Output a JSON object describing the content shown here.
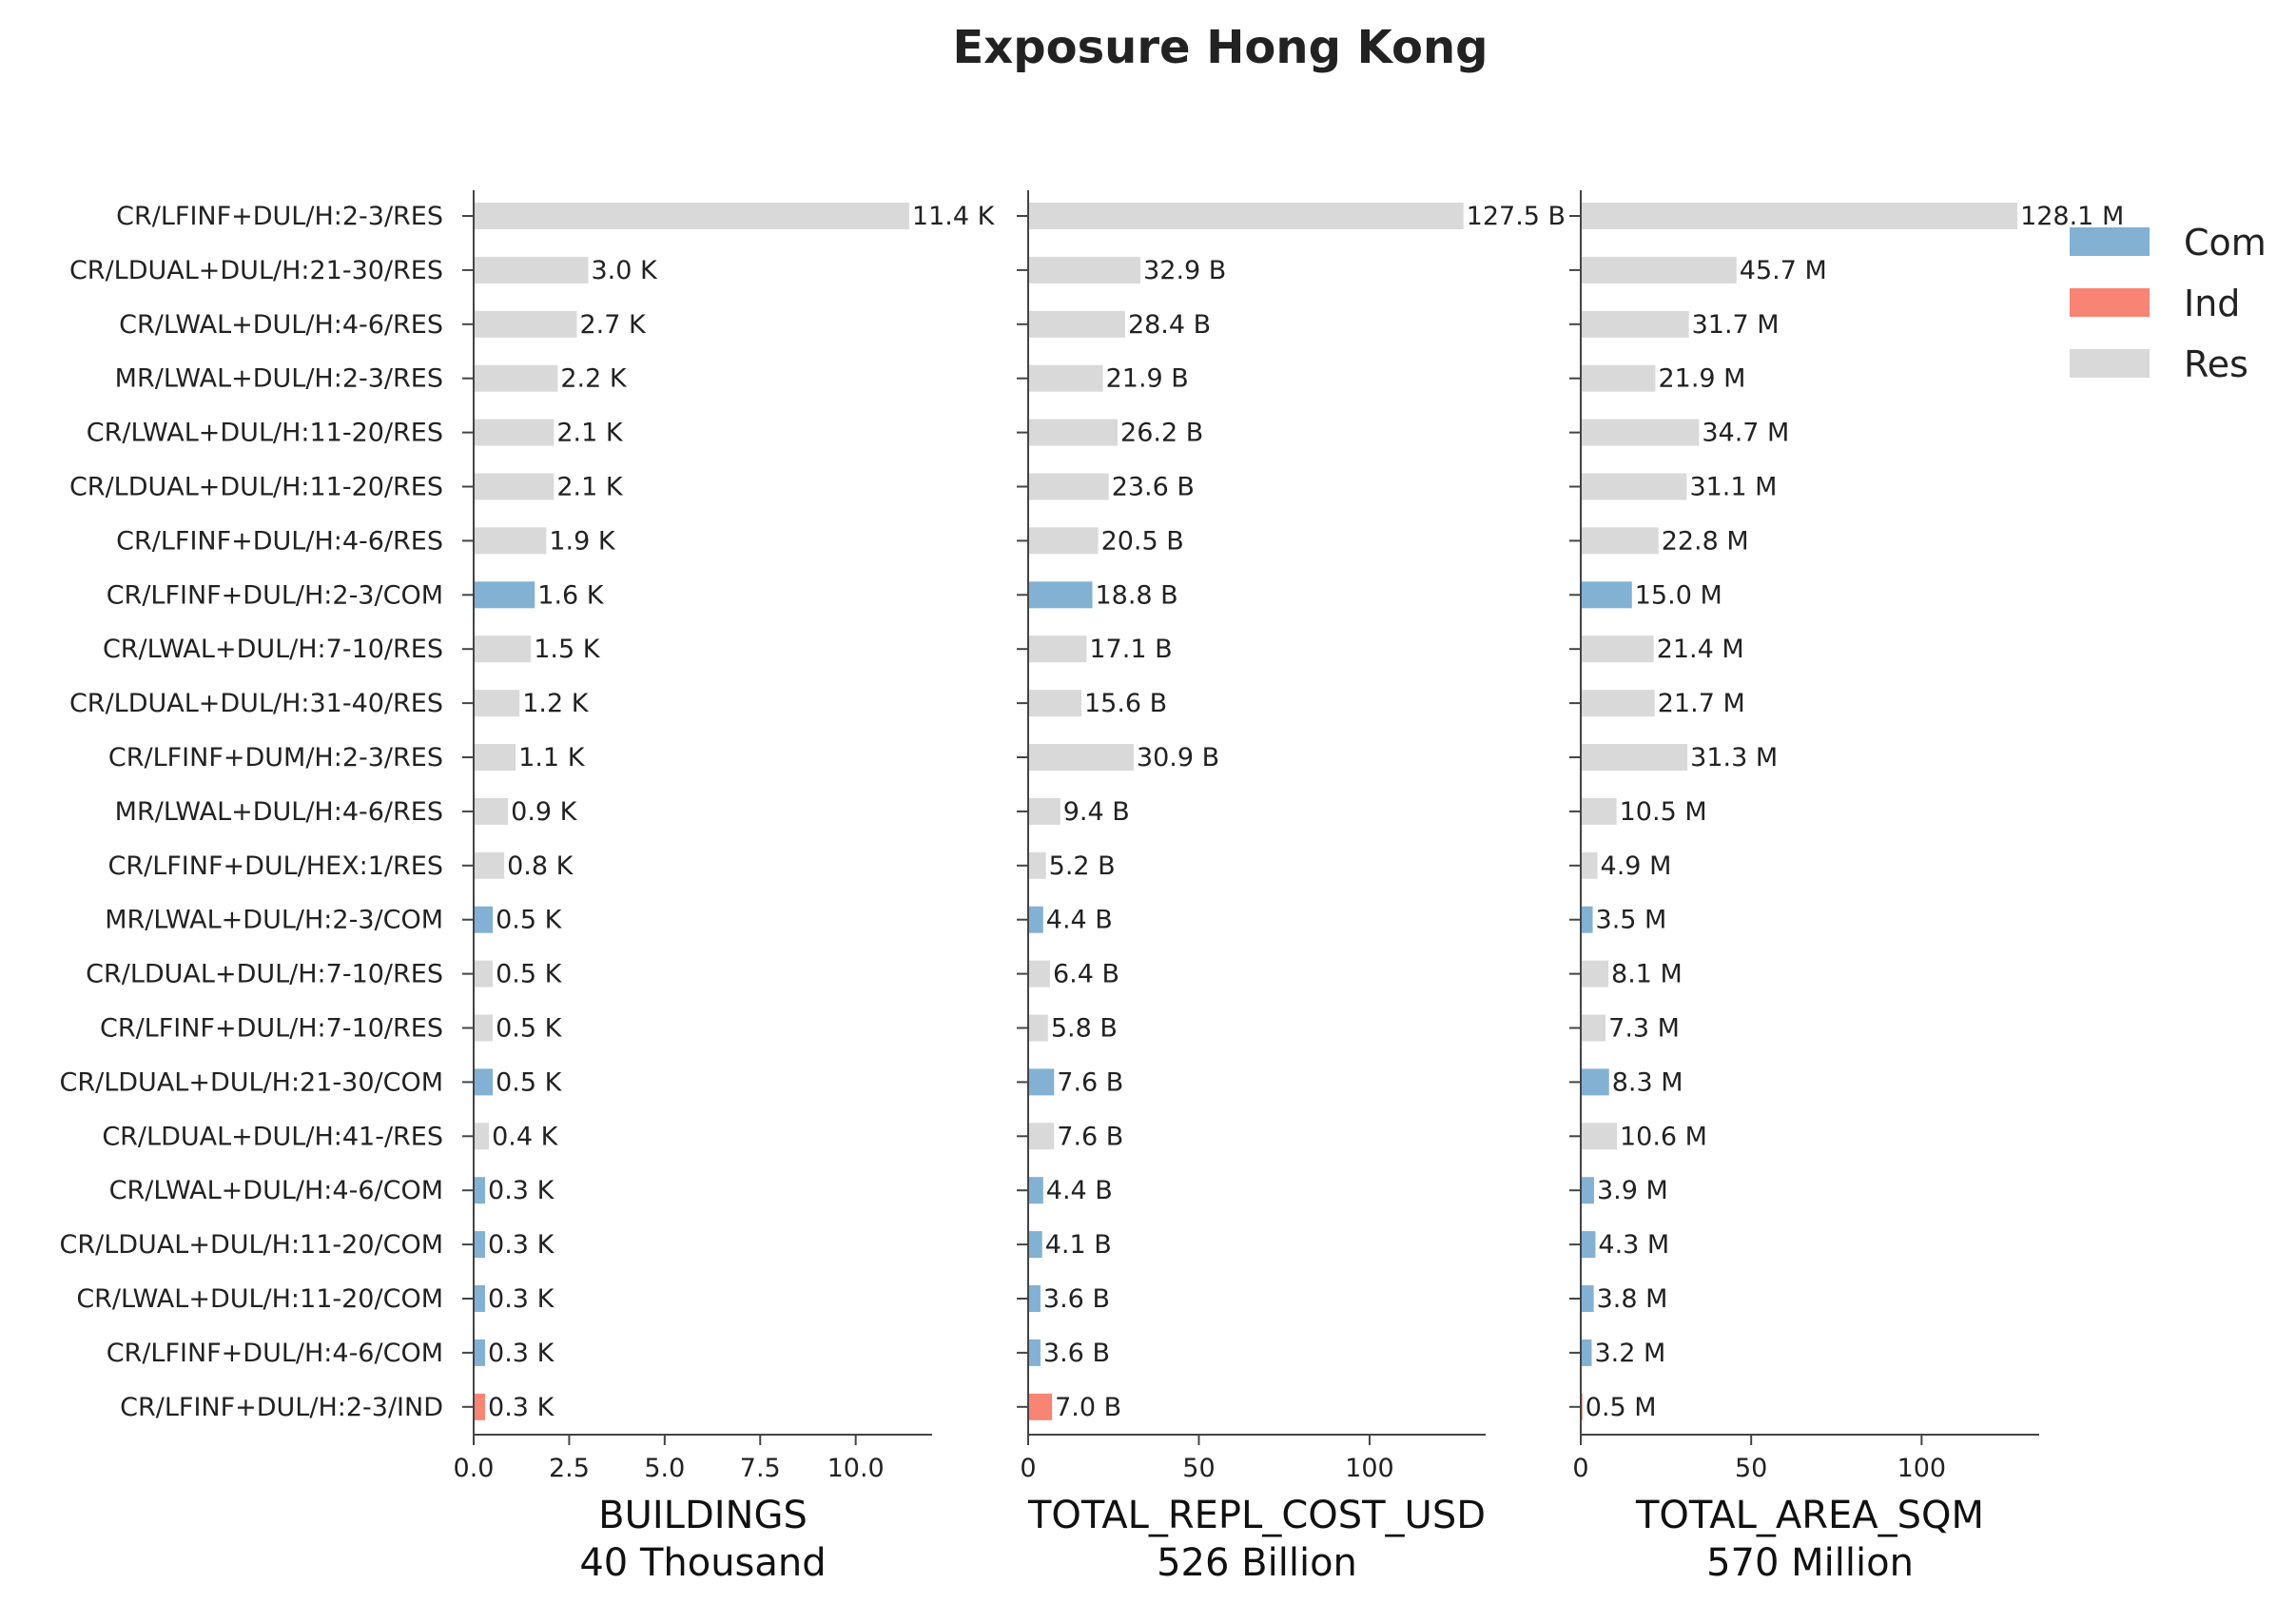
{
  "chart_data": {
    "type": "bar",
    "orientation": "horizontal",
    "title": "Exposure Hong Kong",
    "categories": [
      "CR/LFINF+DUL/H:2-3/RES",
      "CR/LDUAL+DUL/H:21-30/RES",
      "CR/LWAL+DUL/H:4-6/RES",
      "MR/LWAL+DUL/H:2-3/RES",
      "CR/LWAL+DUL/H:11-20/RES",
      "CR/LDUAL+DUL/H:11-20/RES",
      "CR/LFINF+DUL/H:4-6/RES",
      "CR/LFINF+DUL/H:2-3/COM",
      "CR/LWAL+DUL/H:7-10/RES",
      "CR/LDUAL+DUL/H:31-40/RES",
      "CR/LFINF+DUM/H:2-3/RES",
      "MR/LWAL+DUL/H:4-6/RES",
      "CR/LFINF+DUL/HEX:1/RES",
      "MR/LWAL+DUL/H:2-3/COM",
      "CR/LDUAL+DUL/H:7-10/RES",
      "CR/LFINF+DUL/H:7-10/RES",
      "CR/LDUAL+DUL/H:21-30/COM",
      "CR/LDUAL+DUL/H:41-/RES",
      "CR/LWAL+DUL/H:4-6/COM",
      "CR/LDUAL+DUL/H:11-20/COM",
      "CR/LWAL+DUL/H:11-20/COM",
      "CR/LFINF+DUL/H:4-6/COM",
      "CR/LFINF+DUL/H:2-3/IND"
    ],
    "occupancy": [
      "Res",
      "Res",
      "Res",
      "Res",
      "Res",
      "Res",
      "Res",
      "Com",
      "Res",
      "Res",
      "Res",
      "Res",
      "Res",
      "Com",
      "Res",
      "Res",
      "Com",
      "Res",
      "Com",
      "Com",
      "Com",
      "Com",
      "Ind"
    ],
    "legend": {
      "placement": "top-right",
      "entries": [
        {
          "name": "Com",
          "color": "#82b1d3"
        },
        {
          "name": "Ind",
          "color": "#f88474"
        },
        {
          "name": "Res",
          "color": "#d9d9d9"
        }
      ]
    },
    "panels": [
      {
        "xlabel": "BUILDINGS",
        "total": "40 Thousand",
        "xlim": [
          0,
          12
        ],
        "xticks": [
          0,
          2.5,
          5,
          7.5,
          10
        ],
        "xtick_labels": [
          "0.0",
          "2.5",
          "5.0",
          "7.5",
          "10.0"
        ],
        "values": [
          11.4,
          3.0,
          2.7,
          2.2,
          2.1,
          2.1,
          1.9,
          1.6,
          1.5,
          1.2,
          1.1,
          0.9,
          0.8,
          0.5,
          0.5,
          0.5,
          0.5,
          0.4,
          0.3,
          0.3,
          0.3,
          0.3,
          0.3
        ],
        "value_labels": [
          "11.4 K",
          "3.0 K",
          "2.7 K",
          "2.2 K",
          "2.1 K",
          "2.1 K",
          "1.9 K",
          "1.6 K",
          "1.5 K",
          "1.2 K",
          "1.1 K",
          "0.9 K",
          "0.8 K",
          "0.5 K",
          "0.5 K",
          "0.5 K",
          "0.5 K",
          "0.4 K",
          "0.3 K",
          "0.3 K",
          "0.3 K",
          "0.3 K",
          "0.3 K"
        ]
      },
      {
        "xlabel": "TOTAL_REPL_COST_USD",
        "total": "526 Billion",
        "xlim": [
          0,
          134
        ],
        "xticks": [
          0,
          50,
          100
        ],
        "xtick_labels": [
          "0",
          "50",
          "100"
        ],
        "values": [
          127.5,
          32.9,
          28.4,
          21.9,
          26.2,
          23.6,
          20.5,
          18.8,
          17.1,
          15.6,
          30.9,
          9.4,
          5.2,
          4.4,
          6.4,
          5.8,
          7.6,
          7.6,
          4.4,
          4.1,
          3.6,
          3.6,
          7.0
        ],
        "value_labels": [
          "127.5 B",
          "32.9 B",
          "28.4 B",
          "21.9 B",
          "26.2 B",
          "23.6 B",
          "20.5 B",
          "18.8 B",
          "17.1 B",
          "15.6 B",
          "30.9 B",
          "9.4 B",
          "5.2 B",
          "4.4 B",
          "6.4 B",
          "5.8 B",
          "7.6 B",
          "7.6 B",
          "4.4 B",
          "4.1 B",
          "3.6 B",
          "3.6 B",
          "7.0 B"
        ]
      },
      {
        "xlabel": "TOTAL_AREA_SQM",
        "total": "570 Million",
        "xlim": [
          0,
          134.5
        ],
        "xticks": [
          0,
          50,
          100
        ],
        "xtick_labels": [
          "0",
          "50",
          "100"
        ],
        "values": [
          128.1,
          45.7,
          31.7,
          21.9,
          34.7,
          31.1,
          22.8,
          15.0,
          21.4,
          21.7,
          31.3,
          10.5,
          4.9,
          3.5,
          8.1,
          7.3,
          8.3,
          10.6,
          3.9,
          4.3,
          3.8,
          3.2,
          0.5
        ],
        "value_labels": [
          "128.1 M",
          "45.7 M",
          "31.7 M",
          "21.9 M",
          "34.7 M",
          "31.1 M",
          "22.8 M",
          "15.0 M",
          "21.4 M",
          "21.7 M",
          "31.3 M",
          "10.5 M",
          "4.9 M",
          "3.5 M",
          "8.1 M",
          "7.3 M",
          "8.3 M",
          "10.6 M",
          "3.9 M",
          "4.3 M",
          "3.8 M",
          "3.2 M",
          "0.5 M"
        ]
      }
    ],
    "grid": false
  }
}
